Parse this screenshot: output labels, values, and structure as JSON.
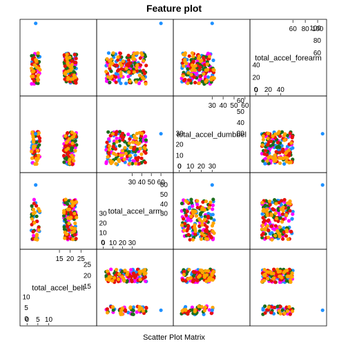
{
  "chart_data": {
    "type": "scatter",
    "title": "Feature plot",
    "xlabel": "Scatter Plot Matrix",
    "variables": [
      {
        "name": "total_accel_belt",
        "range": [
          -2,
          31
        ],
        "low_ticks": [
          "0",
          "5",
          "10"
        ],
        "high_ticks": [
          "15",
          "20",
          "25"
        ]
      },
      {
        "name": "total_accel_arm",
        "range": [
          -4,
          70
        ],
        "low_ticks": [
          "0",
          "10",
          "20",
          "30"
        ],
        "high_ticks": [
          "30",
          "40",
          "50",
          "60"
        ]
      },
      {
        "name": "total_accel_dumbbell",
        "range": [
          -3,
          62
        ],
        "low_ticks": [
          "0",
          "10",
          "20",
          "30"
        ],
        "high_ticks": [
          "30",
          "40",
          "50",
          "60"
        ]
      },
      {
        "name": "total_accel_forearm",
        "range": [
          -5,
          110
        ],
        "low_ticks": [
          "0",
          "20",
          "40"
        ],
        "high_ticks": [
          "60",
          "80",
          "100"
        ]
      }
    ],
    "labels_shown": [
      "total_accel_belt",
      "total_accel_arm",
      "total_accel_dumbbel",
      "total_accel_forearm"
    ],
    "tick_values": {
      "total_accel_belt": {
        "low": [
          0,
          5,
          10
        ],
        "high": [
          15,
          20,
          25
        ]
      },
      "total_accel_arm": {
        "low": [
          0,
          10,
          20,
          30
        ],
        "high": [
          30,
          40,
          50,
          60
        ]
      },
      "total_accel_dumbbell": {
        "low": [
          0,
          10,
          20,
          30
        ],
        "high": [
          30,
          40,
          50,
          60
        ]
      },
      "total_accel_forearm": {
        "low": [
          0,
          20,
          40
        ],
        "high": [
          60,
          80,
          100
        ]
      }
    },
    "groups": [
      {
        "color": "#e5130b"
      },
      {
        "color": "#1c6e1c"
      },
      {
        "color": "#1e90ff"
      },
      {
        "color": "#ff00ff"
      },
      {
        "color": "#ffa500"
      }
    ],
    "clusters": {
      "total_accel_belt": [
        [
          2,
          6,
          0.3
        ],
        [
          17,
          23,
          0.7
        ]
      ],
      "total_accel_arm": [
        [
          3,
          45,
          1.0
        ]
      ],
      "total_accel_dumbbell": [
        [
          2,
          32,
          1.0
        ]
      ],
      "total_accel_forearm": [
        [
          10,
          60,
          1.0
        ]
      ]
    },
    "outliers": [
      {
        "values": [
          4,
          60,
          30,
          108
        ],
        "group": 2
      }
    ],
    "grid": false,
    "legend": "none"
  }
}
